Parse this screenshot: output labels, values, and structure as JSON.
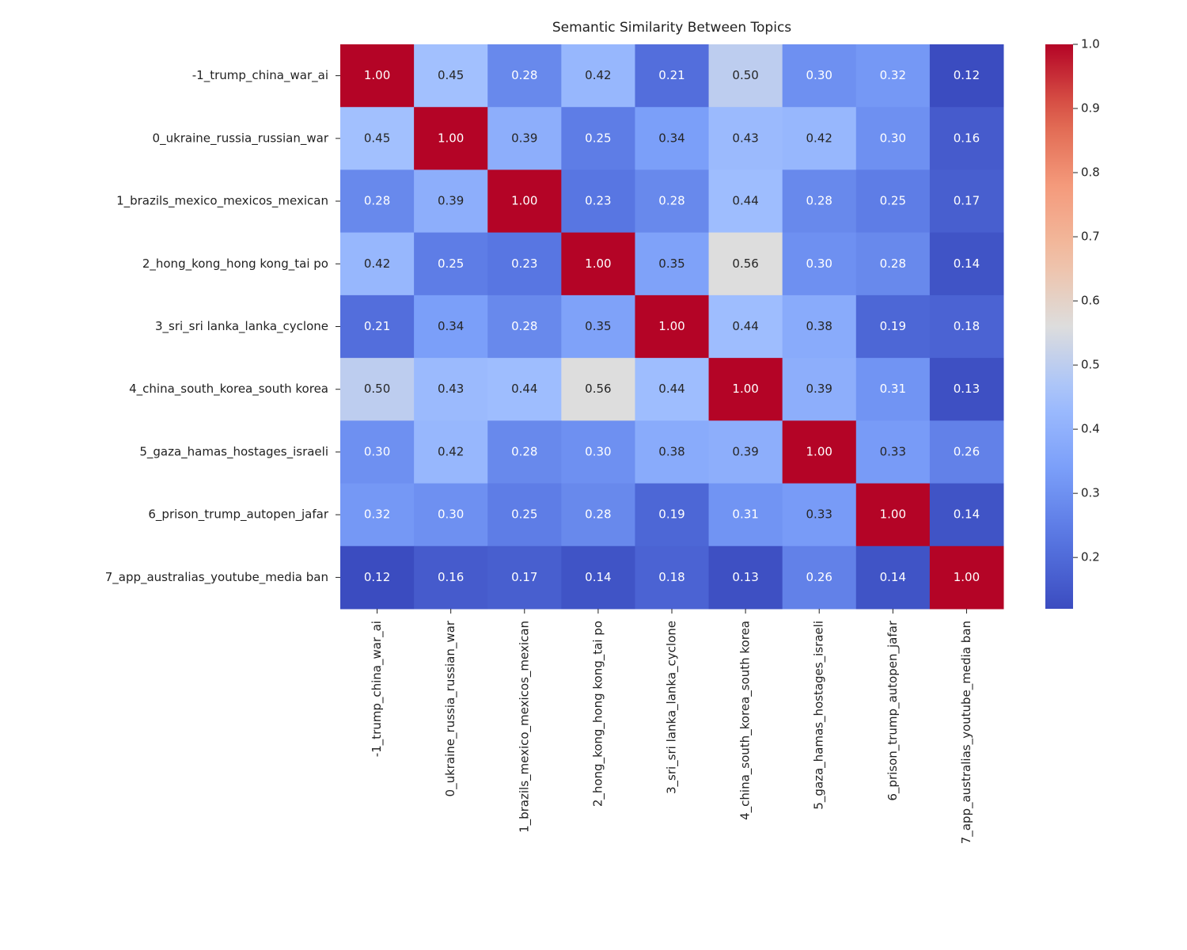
{
  "chart_data": {
    "type": "heatmap",
    "title": "Semantic Similarity Between Topics",
    "categories": [
      "-1_trump_china_war_ai",
      "0_ukraine_russia_russian_war",
      "1_brazils_mexico_mexicos_mexican",
      "2_hong_kong_hong kong_tai po",
      "3_sri_sri lanka_lanka_cyclone",
      "4_china_south_korea_south korea",
      "5_gaza_hamas_hostages_israeli",
      "6_prison_trump_autopen_jafar",
      "7_app_australias_youtube_media ban"
    ],
    "values": [
      [
        1.0,
        0.45,
        0.28,
        0.42,
        0.21,
        0.5,
        0.3,
        0.32,
        0.12
      ],
      [
        0.45,
        1.0,
        0.39,
        0.25,
        0.34,
        0.43,
        0.42,
        0.3,
        0.16
      ],
      [
        0.28,
        0.39,
        1.0,
        0.23,
        0.28,
        0.44,
        0.28,
        0.25,
        0.17
      ],
      [
        0.42,
        0.25,
        0.23,
        1.0,
        0.35,
        0.56,
        0.3,
        0.28,
        0.14
      ],
      [
        0.21,
        0.34,
        0.28,
        0.35,
        1.0,
        0.44,
        0.38,
        0.19,
        0.18
      ],
      [
        0.5,
        0.43,
        0.44,
        0.56,
        0.44,
        1.0,
        0.39,
        0.31,
        0.13
      ],
      [
        0.3,
        0.42,
        0.28,
        0.3,
        0.38,
        0.39,
        1.0,
        0.33,
        0.26
      ],
      [
        0.32,
        0.3,
        0.25,
        0.28,
        0.19,
        0.31,
        0.33,
        1.0,
        0.14
      ],
      [
        0.12,
        0.16,
        0.17,
        0.14,
        0.18,
        0.13,
        0.26,
        0.14,
        1.0
      ]
    ],
    "value_labels": [
      [
        "1.00",
        "0.45",
        "0.28",
        "0.42",
        "0.21",
        "0.50",
        "0.30",
        "0.32",
        "0.12"
      ],
      [
        "0.45",
        "1.00",
        "0.39",
        "0.25",
        "0.34",
        "0.43",
        "0.42",
        "0.30",
        "0.16"
      ],
      [
        "0.28",
        "0.39",
        "1.00",
        "0.23",
        "0.28",
        "0.44",
        "0.28",
        "0.25",
        "0.17"
      ],
      [
        "0.42",
        "0.25",
        "0.23",
        "1.00",
        "0.35",
        "0.56",
        "0.30",
        "0.28",
        "0.14"
      ],
      [
        "0.21",
        "0.34",
        "0.28",
        "0.35",
        "1.00",
        "0.44",
        "0.38",
        "0.19",
        "0.18"
      ],
      [
        "0.50",
        "0.43",
        "0.44",
        "0.56",
        "0.44",
        "1.00",
        "0.39",
        "0.31",
        "0.13"
      ],
      [
        "0.30",
        "0.42",
        "0.28",
        "0.30",
        "0.38",
        "0.39",
        "1.00",
        "0.33",
        "0.26"
      ],
      [
        "0.32",
        "0.30",
        "0.25",
        "0.28",
        "0.19",
        "0.31",
        "0.33",
        "1.00",
        "0.14"
      ],
      [
        "0.12",
        "0.16",
        "0.17",
        "0.14",
        "0.18",
        "0.13",
        "0.26",
        "0.14",
        "1.00"
      ]
    ],
    "colormap": "coolwarm",
    "zlim": [
      0.12,
      1.0
    ],
    "zticks": [
      0.2,
      0.3,
      0.4,
      0.5,
      0.6,
      0.7,
      0.8,
      0.9,
      {
        "value": 1.0,
        "label": "1.0"
      }
    ]
  }
}
